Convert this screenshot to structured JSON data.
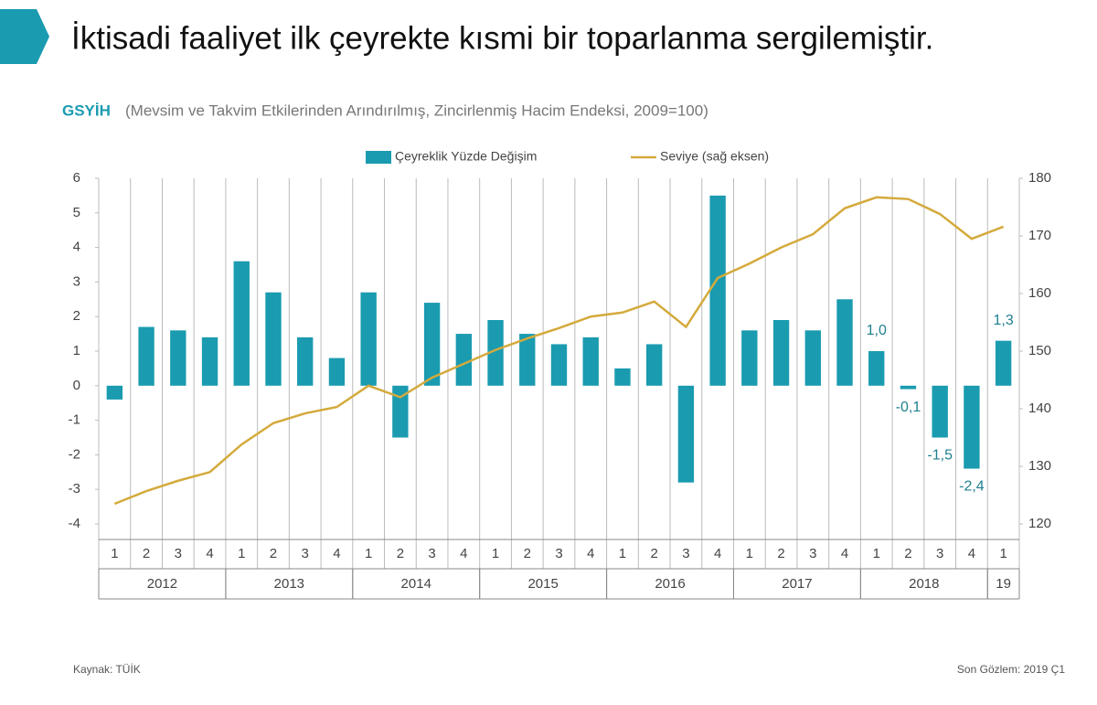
{
  "chart_data": {
    "type": "bar",
    "title": "İktisadi faaliyet ilk çeyrekte kısmi bir toparlanma sergilemiştir.",
    "subtitle_lead": "GSYİH",
    "subtitle": "(Mevsim ve Takvim Etkilerinden Arındırılmış, Zincirlenmiş Hacim Endeksi, 2009=100)",
    "categories": [
      "1",
      "2",
      "3",
      "4",
      "1",
      "2",
      "3",
      "4",
      "1",
      "2",
      "3",
      "4",
      "1",
      "2",
      "3",
      "4",
      "1",
      "2",
      "3",
      "4",
      "1",
      "2",
      "3",
      "4",
      "1",
      "2",
      "3",
      "4",
      "1"
    ],
    "x_groups": [
      {
        "label": "2012",
        "size": 4
      },
      {
        "label": "2013",
        "size": 4
      },
      {
        "label": "2014",
        "size": 4
      },
      {
        "label": "2015",
        "size": 4
      },
      {
        "label": "2016",
        "size": 4
      },
      {
        "label": "2017",
        "size": 4
      },
      {
        "label": "2018",
        "size": 4
      },
      {
        "label": "19",
        "size": 1
      }
    ],
    "series": [
      {
        "name": "Çeyreklik Yüzde Değişim",
        "type": "bar",
        "color": "#1a9bb0",
        "values": [
          -0.4,
          1.7,
          1.6,
          1.4,
          3.6,
          2.7,
          1.4,
          0.8,
          2.7,
          -1.5,
          2.4,
          1.5,
          1.9,
          1.5,
          1.2,
          1.4,
          0.5,
          1.2,
          -2.8,
          5.5,
          1.6,
          1.9,
          1.6,
          2.5,
          1.0,
          -0.1,
          -1.5,
          -2.4,
          1.3
        ],
        "value_labels": [
          null,
          null,
          null,
          null,
          null,
          null,
          null,
          null,
          null,
          null,
          null,
          null,
          null,
          null,
          null,
          null,
          null,
          null,
          null,
          null,
          null,
          null,
          null,
          null,
          "1,0",
          "-0,1",
          "-1,5",
          "-2,4",
          "1,3"
        ]
      },
      {
        "name": "Seviye (sağ eksen)",
        "type": "line",
        "axis": "y2",
        "color": "#d4aa3c",
        "values": [
          123.5,
          125.7,
          127.5,
          129,
          133.8,
          137.5,
          139.2,
          140.3,
          144,
          142,
          145.4,
          147.8,
          150.2,
          152.2,
          154,
          156,
          156.7,
          158.6,
          154.2,
          162.7,
          165.2,
          168,
          170.3,
          174.8,
          176.7,
          176.4,
          173.8,
          169.5,
          171.6
        ]
      }
    ],
    "ylim": [
      -4,
      6
    ],
    "yticks": [
      -4,
      -3,
      -2,
      -1,
      0,
      1,
      2,
      3,
      4,
      5,
      6
    ],
    "y2lim": [
      120,
      180
    ],
    "y2ticks": [
      120,
      130,
      140,
      150,
      160,
      170,
      180
    ],
    "legend": "top",
    "source": "Kaynak: TÜİK",
    "last_observation": "Son Gözlem: 2019 Ç1"
  }
}
